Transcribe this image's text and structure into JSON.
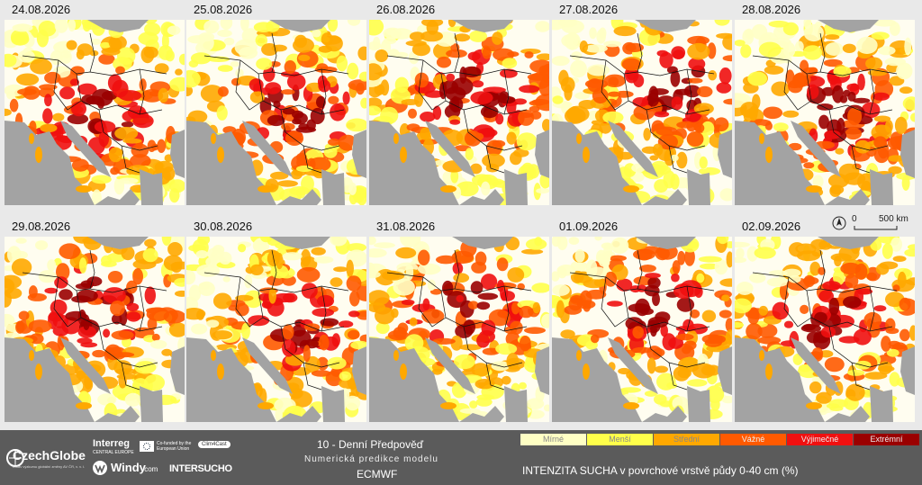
{
  "dates": [
    "24.08.2026",
    "25.08.2026",
    "26.08.2026",
    "27.08.2026",
    "28.08.2026",
    "29.08.2026",
    "30.08.2026",
    "31.08.2026",
    "01.09.2026",
    "02.09.2026"
  ],
  "scale": {
    "zero": "0",
    "distance": "500 km"
  },
  "footer": {
    "czechglobe": "CzechGlobe",
    "czechglobe_sub": "Ústav výzkumu globální změny AV ČR, v. v. i.",
    "interreg": "Interreg",
    "central_europe": "CENTRAL EUROPE",
    "cofunded": "Co-funded by the European Union",
    "clim4cast": "Clim4Cast",
    "windy": "Windy",
    "windy_suffix": ".com",
    "intersucho": "INTERSUCHO"
  },
  "forecast": {
    "title": "10 - Denní Předpověď",
    "subtitle": "Numerická predikce modelu",
    "model": "ECMWF"
  },
  "legend": {
    "title": "INTENZITA SUCHA v povrchové vrstvě půdy 0-40 cm (%)",
    "items": [
      {
        "label": "Mírné",
        "color": "#ffffc4"
      },
      {
        "label": "Menší",
        "color": "#ffff4a"
      },
      {
        "label": "Střední",
        "color": "#ffa800"
      },
      {
        "label": "Vážné",
        "color": "#ff5a00"
      },
      {
        "label": "Výjimečné",
        "color": "#f01010"
      },
      {
        "label": "Extrémní",
        "color": "#9a0000"
      }
    ]
  }
}
